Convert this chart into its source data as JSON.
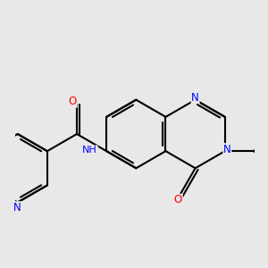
{
  "background_color": "#e8e8e8",
  "bond_color": "#000000",
  "bond_width": 1.5,
  "atom_colors": {
    "N": "#0000ff",
    "O": "#ff0000",
    "C": "#000000"
  },
  "font_size_atom": 8.5
}
